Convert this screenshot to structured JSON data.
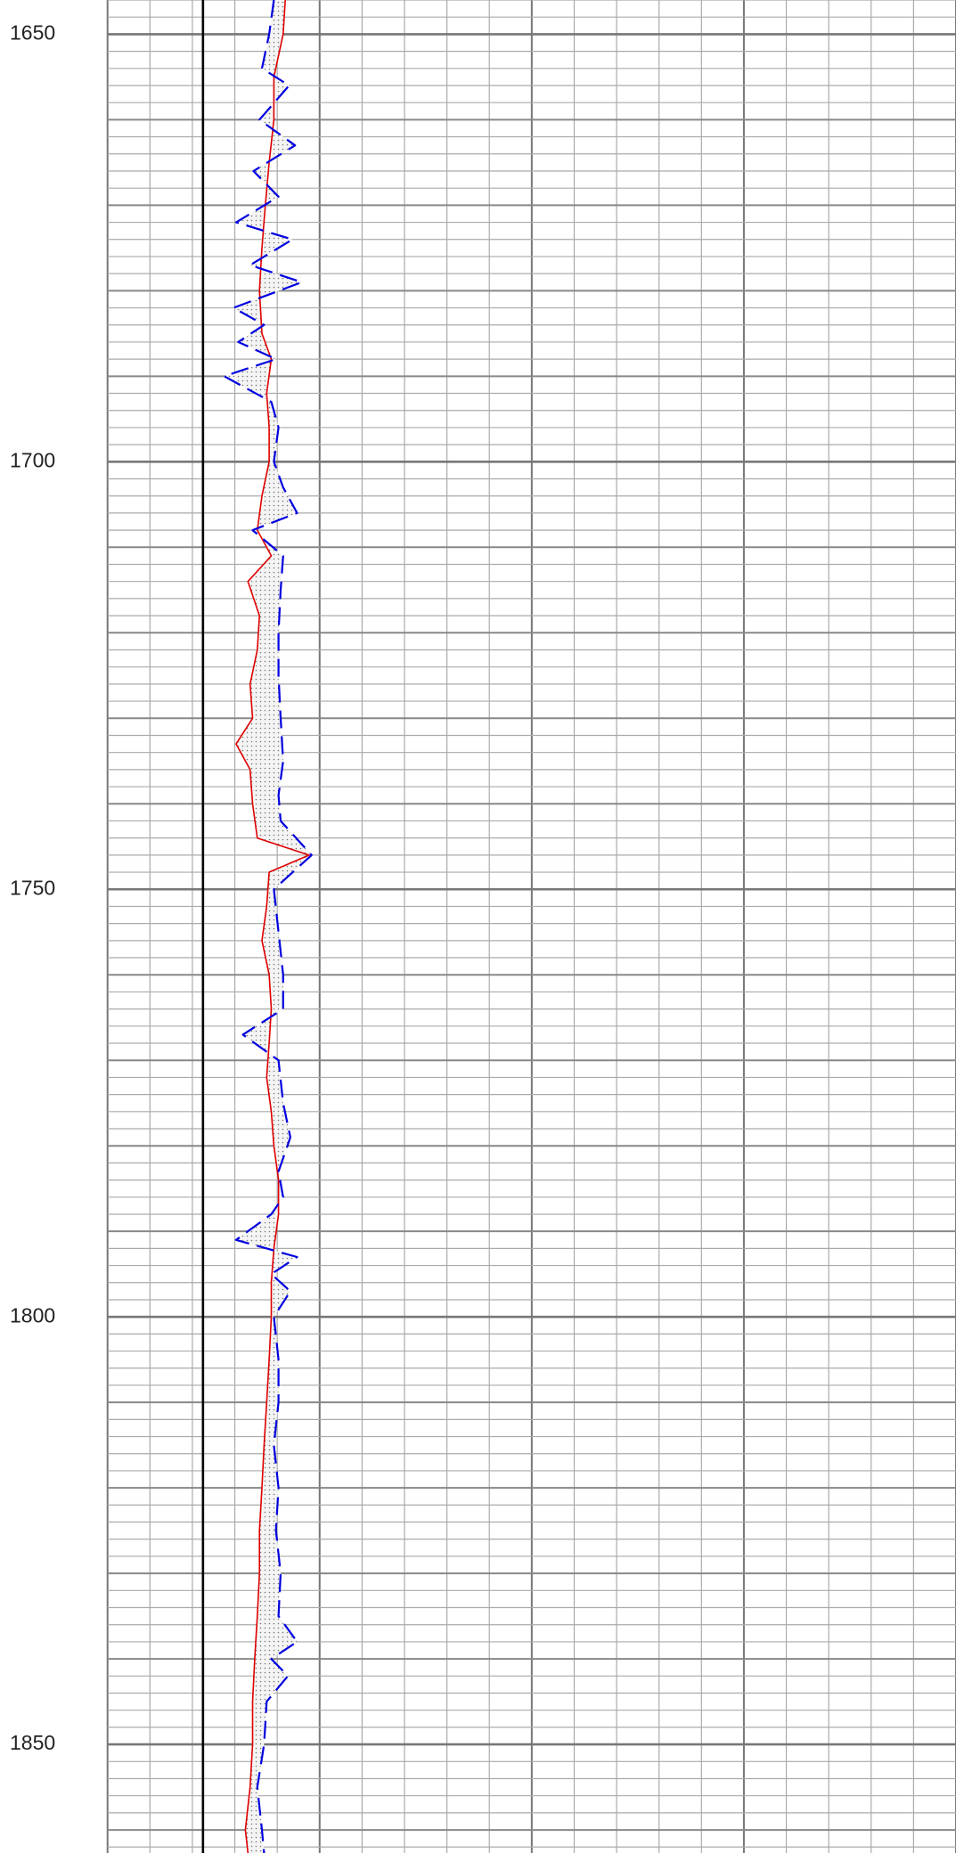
{
  "chart_data": {
    "type": "log",
    "ylim": [
      1646,
      1862.7
    ],
    "yticks": [
      1650,
      1700,
      1750,
      1800,
      1850
    ],
    "ygrid_minor": 2,
    "ygrid_medium": 10,
    "xlim": [
      0,
      20
    ],
    "xgrid_step": 1,
    "xgrid_major": 5,
    "cutoff": 2.25,
    "fill": true,
    "series": [
      {
        "name": "curve-red",
        "color": "#e00000",
        "dash": false,
        "depths": [
          1646,
          1650,
          1655,
          1660,
          1665,
          1670,
          1675,
          1680,
          1685,
          1688,
          1692,
          1696,
          1700,
          1704,
          1708,
          1711,
          1714,
          1718,
          1722,
          1726,
          1730,
          1733,
          1736,
          1740,
          1744,
          1746,
          1748,
          1752,
          1756,
          1760,
          1764,
          1768,
          1772,
          1776,
          1780,
          1784,
          1788,
          1792,
          1796,
          1800,
          1805,
          1810,
          1815,
          1820,
          1825,
          1830,
          1835,
          1840,
          1845,
          1850,
          1855,
          1860,
          1862.7
        ],
        "values": [
          4.19,
          4.14,
          3.92,
          3.92,
          3.81,
          3.72,
          3.64,
          3.58,
          3.64,
          3.86,
          3.75,
          3.81,
          3.81,
          3.64,
          3.53,
          3.86,
          3.31,
          3.58,
          3.53,
          3.36,
          3.42,
          3.03,
          3.36,
          3.42,
          3.53,
          4.75,
          3.81,
          3.75,
          3.64,
          3.81,
          3.86,
          3.81,
          3.75,
          3.86,
          3.92,
          4.03,
          4.03,
          3.92,
          3.86,
          3.86,
          3.81,
          3.75,
          3.69,
          3.64,
          3.58,
          3.58,
          3.53,
          3.47,
          3.42,
          3.42,
          3.36,
          3.25,
          3.31
        ]
      },
      {
        "name": "curve-blue",
        "color": "#0000e0",
        "dash": true,
        "depths": [
          1646,
          1650,
          1654,
          1656,
          1660,
          1663,
          1666,
          1669,
          1672,
          1674,
          1677,
          1679,
          1682,
          1684,
          1686,
          1688,
          1690,
          1693,
          1696,
          1700,
          1703,
          1706,
          1708,
          1711,
          1715,
          1720,
          1725,
          1730,
          1735,
          1739,
          1742,
          1746,
          1750,
          1755,
          1760,
          1764,
          1767,
          1770,
          1775,
          1779,
          1783,
          1786,
          1788,
          1791,
          1793,
          1795,
          1797,
          1800,
          1805,
          1810,
          1815,
          1820,
          1825,
          1830,
          1835,
          1838,
          1840,
          1842,
          1845,
          1850,
          1855,
          1860,
          1862.7
        ],
        "values": [
          3.92,
          3.81,
          3.64,
          4.28,
          3.58,
          4.42,
          3.44,
          4.03,
          3.03,
          4.36,
          3.36,
          4.58,
          2.97,
          3.69,
          3.08,
          3.97,
          2.75,
          3.86,
          4.03,
          3.92,
          4.14,
          4.47,
          3.42,
          4.14,
          4.08,
          4.03,
          4.03,
          4.08,
          4.14,
          4.03,
          4.08,
          4.81,
          3.92,
          4.03,
          4.14,
          4.14,
          3.19,
          4.03,
          4.14,
          4.31,
          4.03,
          4.14,
          3.86,
          3.03,
          4.47,
          3.86,
          4.31,
          3.92,
          4.03,
          4.03,
          3.92,
          4.03,
          3.97,
          4.08,
          4.03,
          4.47,
          3.86,
          4.25,
          3.75,
          3.69,
          3.53,
          3.64,
          3.69
        ]
      }
    ]
  }
}
